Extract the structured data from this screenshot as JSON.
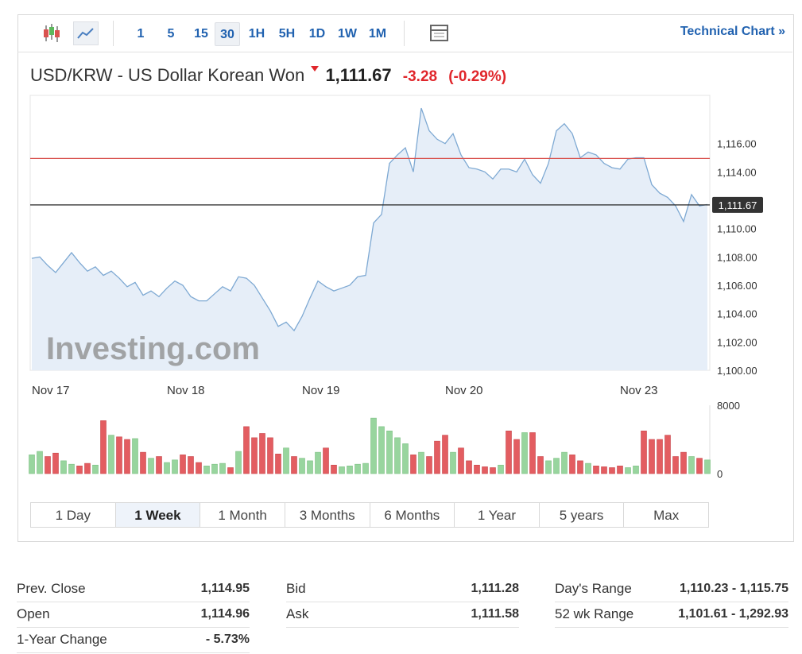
{
  "toolbar": {
    "intervals": [
      "1",
      "5",
      "15",
      "30",
      "1H",
      "5H",
      "1D",
      "1W",
      "1M"
    ],
    "link": "Technical Chart »"
  },
  "header": {
    "title": "USD/KRW - US Dollar Korean Won",
    "price": "1,111.67",
    "change": "-3.28",
    "change_percent": "(-0.29%)"
  },
  "chart_data": [
    {
      "type": "line",
      "watermark": "Investing.com",
      "color": "#7ea9d3",
      "fill": "#e6eef8",
      "grid": false,
      "categories": [
        "Nov 17",
        null,
        null,
        null,
        null,
        null,
        null,
        null,
        null,
        null,
        null,
        null,
        null,
        null,
        null,
        null,
        null,
        "Nov 18",
        null,
        null,
        null,
        null,
        null,
        null,
        null,
        null,
        null,
        null,
        null,
        null,
        null,
        null,
        null,
        null,
        "Nov 19",
        null,
        null,
        null,
        null,
        null,
        null,
        null,
        null,
        null,
        null,
        null,
        null,
        null,
        null,
        null,
        null,
        null,
        "Nov 20",
        null,
        null,
        null,
        null,
        null,
        null,
        null,
        null,
        null,
        null,
        null,
        null,
        null,
        null,
        null,
        null,
        null,
        null,
        null,
        null,
        null,
        "Nov 23",
        null,
        null,
        null,
        null,
        null,
        null,
        null,
        null,
        null,
        null,
        null
      ],
      "values": [
        1107.9,
        1108.0,
        1107.4,
        1106.9,
        1107.6,
        1108.3,
        1107.6,
        1107.0,
        1107.3,
        1106.7,
        1107.0,
        1106.5,
        1105.9,
        1106.2,
        1105.3,
        1105.6,
        1105.2,
        1105.8,
        1106.3,
        1106.0,
        1105.2,
        1104.9,
        1104.9,
        1105.4,
        1105.9,
        1105.6,
        1106.6,
        1106.5,
        1106.0,
        1105.1,
        1104.2,
        1103.1,
        1103.4,
        1102.8,
        1103.8,
        1105.1,
        1106.3,
        1105.9,
        1105.6,
        1105.8,
        1106.0,
        1106.6,
        1106.7,
        1110.4,
        1111.0,
        1114.6,
        1115.2,
        1115.7,
        1114.0,
        1118.5,
        1116.9,
        1116.3,
        1116.0,
        1116.7,
        1115.2,
        1114.3,
        1114.2,
        1114.0,
        1113.5,
        1114.2,
        1114.2,
        1114.0,
        1114.9,
        1113.8,
        1113.2,
        1114.6,
        1116.9,
        1117.4,
        1116.7,
        1115.0,
        1115.4,
        1115.2,
        1114.6,
        1114.3,
        1114.2,
        1114.9,
        1115.0,
        1115.0,
        1113.1,
        1112.5,
        1112.2,
        1111.6,
        1110.5,
        1112.4,
        1111.6,
        1111.7
      ],
      "ylim": [
        1100,
        1119.4
      ],
      "yticks": [
        {
          "value": 1100,
          "label": "1,100.00"
        },
        {
          "value": 1102,
          "label": "1,102.00"
        },
        {
          "value": 1104,
          "label": "1,104.00"
        },
        {
          "value": 1106,
          "label": "1,106.00"
        },
        {
          "value": 1108,
          "label": "1,108.00"
        },
        {
          "value": 1110,
          "label": "1,110.00"
        },
        {
          "value": 1112,
          "label": "1,112.00"
        },
        {
          "value": 1114,
          "label": "1,114.00"
        },
        {
          "value": 1116,
          "label": "1,116.00"
        }
      ],
      "hlines": [
        {
          "value": 1114.95,
          "color": "#d9534f"
        },
        {
          "value": 1111.67,
          "label": "1,111.67",
          "color": "#222222"
        }
      ]
    },
    {
      "type": "bar",
      "values": [
        2200,
        2600,
        2000,
        2400,
        1500,
        1100,
        900,
        1200,
        1000,
        6200,
        4500,
        4300,
        4000,
        4100,
        2500,
        1800,
        2000,
        1300,
        1600,
        2200,
        2000,
        1300,
        900,
        1100,
        1200,
        700,
        2600,
        5500,
        4200,
        4700,
        4200,
        2300,
        3000,
        2000,
        1800,
        1500,
        2500,
        3000,
        1000,
        800,
        900,
        1100,
        1200,
        6500,
        5500,
        5000,
        4200,
        3500,
        2200,
        2500,
        2000,
        3800,
        4500,
        2500,
        3000,
        1500,
        1000,
        800,
        700,
        1000,
        5000,
        4000,
        4800,
        4800,
        2000,
        1500,
        1800,
        2500,
        2200,
        1500,
        1200,
        900,
        800,
        700,
        900,
        700,
        900,
        5000,
        4000,
        4000,
        4500,
        2000,
        2500,
        2000,
        1800,
        1600
      ],
      "colors": [
        "#98d59e",
        "#98d59e",
        "#e35d61",
        "#e35d61",
        "#98d59e",
        "#98d59e",
        "#e35d61",
        "#e35d61",
        "#98d59e",
        "#e35d61",
        "#98d59e",
        "#e35d61",
        "#e35d61",
        "#98d59e",
        "#e35d61",
        "#98d59e",
        "#e35d61",
        "#98d59e",
        "#98d59e",
        "#e35d61",
        "#e35d61",
        "#e35d61",
        "#98d59e",
        "#98d59e",
        "#98d59e",
        "#e35d61",
        "#98d59e",
        "#e35d61",
        "#e35d61",
        "#e35d61",
        "#e35d61",
        "#e35d61",
        "#98d59e",
        "#e35d61",
        "#98d59e",
        "#98d59e",
        "#98d59e",
        "#e35d61",
        "#e35d61",
        "#98d59e",
        "#98d59e",
        "#98d59e",
        "#98d59e",
        "#98d59e",
        "#98d59e",
        "#98d59e",
        "#98d59e",
        "#98d59e",
        "#e35d61",
        "#98d59e",
        "#e35d61",
        "#e35d61",
        "#e35d61",
        "#98d59e",
        "#e35d61",
        "#e35d61",
        "#e35d61",
        "#e35d61",
        "#e35d61",
        "#98d59e",
        "#e35d61",
        "#e35d61",
        "#98d59e",
        "#e35d61",
        "#e35d61",
        "#98d59e",
        "#98d59e",
        "#98d59e",
        "#e35d61",
        "#e35d61",
        "#98d59e",
        "#e35d61",
        "#e35d61",
        "#e35d61",
        "#e35d61",
        "#98d59e",
        "#98d59e",
        "#e35d61",
        "#e35d61",
        "#e35d61",
        "#e35d61",
        "#e35d61",
        "#e35d61",
        "#98d59e",
        "#e35d61",
        "#98d59e"
      ],
      "ylim": [
        0,
        8000
      ],
      "yticks": [
        0,
        8000
      ]
    }
  ],
  "ranges": [
    "1 Day",
    "1 Week",
    "1 Month",
    "3 Months",
    "6 Months",
    "1 Year",
    "5 years",
    "Max"
  ],
  "stats": [
    [
      [
        "Prev. Close",
        "1,114.95"
      ],
      [
        "Open",
        "1,114.96"
      ],
      [
        "1-Year Change",
        "- 5.73%"
      ]
    ],
    [
      [
        "Bid",
        "1,111.28"
      ],
      [
        "Ask",
        "1,111.58"
      ]
    ],
    [
      [
        "Day's Range",
        "1,110.23 - 1,115.75"
      ],
      [
        "52 wk Range",
        "1,101.61 - 1,292.93"
      ]
    ]
  ]
}
